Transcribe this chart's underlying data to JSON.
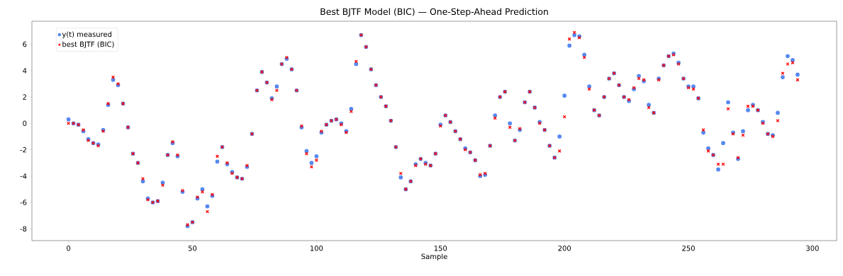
{
  "chart_data": {
    "type": "scatter",
    "title": "Best BJTF Model (BIC) — One-Step-Ahead Prediction",
    "xlabel": "Sample",
    "x": [
      0,
      2,
      4,
      6,
      8,
      10,
      12,
      14,
      16,
      18,
      20,
      22,
      24,
      26,
      28,
      30,
      32,
      34,
      36,
      38,
      40,
      42,
      44,
      46,
      48,
      50,
      52,
      54,
      56,
      58,
      60,
      62,
      64,
      66,
      68,
      70,
      72,
      74,
      76,
      78,
      80,
      82,
      84,
      86,
      88,
      90,
      92,
      94,
      96,
      98,
      100,
      102,
      104,
      106,
      108,
      110,
      112,
      114,
      116,
      118,
      120,
      122,
      124,
      126,
      128,
      130,
      132,
      134,
      136,
      138,
      140,
      142,
      144,
      146,
      148,
      150,
      152,
      154,
      156,
      158,
      160,
      162,
      164,
      166,
      168,
      170,
      172,
      174,
      176,
      178,
      180,
      182,
      184,
      186,
      188,
      190,
      192,
      194,
      196,
      198,
      200,
      202,
      204,
      206,
      208,
      210,
      212,
      214,
      216,
      218,
      220,
      222,
      224,
      226,
      228,
      230,
      232,
      234,
      236,
      238,
      240,
      242,
      244,
      246,
      248,
      250,
      252,
      254,
      256,
      258,
      260,
      262,
      264,
      266,
      268,
      270,
      272,
      274,
      276,
      278,
      280,
      282,
      284,
      286,
      288,
      290,
      292,
      294
    ],
    "series": [
      {
        "name": "y(t) measured",
        "color": "#5588f0",
        "marker": "circle",
        "values": [
          0.3,
          0.0,
          -0.1,
          -0.6,
          -1.2,
          -1.5,
          -1.6,
          -0.5,
          1.4,
          3.3,
          2.9,
          1.5,
          -0.3,
          -2.3,
          -3.0,
          -4.4,
          -5.7,
          -6.0,
          -5.9,
          -4.5,
          -2.4,
          -1.5,
          -2.5,
          -5.2,
          -7.8,
          -7.5,
          -5.7,
          -5.0,
          -6.3,
          -5.5,
          -2.9,
          -1.8,
          -3.1,
          -3.7,
          -4.1,
          -4.2,
          -3.3,
          -0.8,
          2.5,
          3.9,
          3.1,
          1.9,
          2.8,
          4.5,
          4.9,
          4.1,
          2.5,
          -0.3,
          -2.1,
          -3.0,
          -2.5,
          -0.7,
          -0.1,
          0.2,
          0.3,
          0.0,
          -0.6,
          1.1,
          4.5,
          6.7,
          5.8,
          4.1,
          2.9,
          2.0,
          1.3,
          0.2,
          -1.8,
          -4.1,
          -5.0,
          -4.4,
          -3.1,
          -2.7,
          -3.0,
          -3.2,
          -2.3,
          -0.1,
          0.6,
          0.1,
          -0.6,
          -1.2,
          -1.9,
          -2.2,
          -2.8,
          -4.0,
          -3.9,
          -1.7,
          0.6,
          2.0,
          2.4,
          0.0,
          -1.3,
          -0.5,
          1.6,
          2.4,
          1.2,
          0.1,
          -0.5,
          -1.7,
          -2.6,
          -1.0,
          2.1,
          5.9,
          6.7,
          6.6,
          5.2,
          2.8,
          1.0,
          0.6,
          2.0,
          3.4,
          3.8,
          2.9,
          2.0,
          1.7,
          2.6,
          3.6,
          3.2,
          1.4,
          0.8,
          3.4,
          4.4,
          5.1,
          5.3,
          4.6,
          3.4,
          2.8,
          2.8,
          1.9,
          -0.7,
          -1.9,
          -2.4,
          -3.5,
          -1.5,
          1.6,
          -0.7,
          -2.7,
          -0.6,
          1.0,
          1.4,
          1.0,
          0.1,
          -0.8,
          -0.9,
          0.8,
          3.5,
          5.1,
          4.8,
          3.7
        ]
      },
      {
        "name": "best BJTF (BIC)",
        "color": "#ff0000",
        "marker": "cross",
        "values": [
          0.0,
          0.0,
          -0.1,
          -0.5,
          -1.3,
          -1.5,
          -1.7,
          -0.6,
          1.5,
          3.5,
          3.0,
          1.5,
          -0.3,
          -2.3,
          -3.0,
          -4.2,
          -5.8,
          -6.0,
          -5.9,
          -4.7,
          -2.4,
          -1.4,
          -2.4,
          -5.1,
          -7.7,
          -7.5,
          -5.6,
          -5.2,
          -6.7,
          -5.4,
          -2.5,
          -1.8,
          -3.0,
          -3.8,
          -4.1,
          -4.2,
          -3.2,
          -0.8,
          2.5,
          3.9,
          3.1,
          1.8,
          2.5,
          4.5,
          5.0,
          4.1,
          2.5,
          -0.2,
          -2.3,
          -3.3,
          -2.8,
          -0.6,
          -0.1,
          0.2,
          0.3,
          -0.1,
          -0.7,
          0.9,
          4.7,
          6.7,
          5.8,
          4.1,
          2.9,
          2.0,
          1.3,
          0.2,
          -1.8,
          -3.8,
          -5.0,
          -4.4,
          -3.2,
          -2.7,
          -3.1,
          -3.2,
          -2.3,
          -0.2,
          0.6,
          0.1,
          -0.6,
          -1.2,
          -2.0,
          -2.2,
          -2.8,
          -3.9,
          -3.8,
          -1.7,
          0.4,
          2.0,
          2.4,
          -0.3,
          -1.3,
          -0.4,
          1.6,
          2.4,
          1.2,
          0.0,
          -0.5,
          -1.7,
          -2.6,
          -2.1,
          0.5,
          6.4,
          6.9,
          6.5,
          5.0,
          2.6,
          1.0,
          0.6,
          2.0,
          3.4,
          3.8,
          2.9,
          2.0,
          1.8,
          2.7,
          3.4,
          3.3,
          1.2,
          0.8,
          3.3,
          4.4,
          5.1,
          5.2,
          4.5,
          3.4,
          2.7,
          2.6,
          1.9,
          -0.5,
          -2.1,
          -2.4,
          -3.1,
          -3.1,
          1.1,
          -0.8,
          -2.6,
          -0.9,
          1.3,
          1.3,
          1.0,
          0.0,
          -0.8,
          -1.0,
          0.2,
          3.8,
          4.5,
          4.6,
          3.3
        ]
      }
    ],
    "xlim": [
      -14.75,
      309.75
    ],
    "ylim": [
      -8.9,
      7.75
    ],
    "xticks": [
      0,
      50,
      100,
      150,
      200,
      250,
      300
    ],
    "yticks": [
      -8,
      -6,
      -4,
      -2,
      0,
      2,
      4,
      6
    ],
    "legend": "top left"
  }
}
